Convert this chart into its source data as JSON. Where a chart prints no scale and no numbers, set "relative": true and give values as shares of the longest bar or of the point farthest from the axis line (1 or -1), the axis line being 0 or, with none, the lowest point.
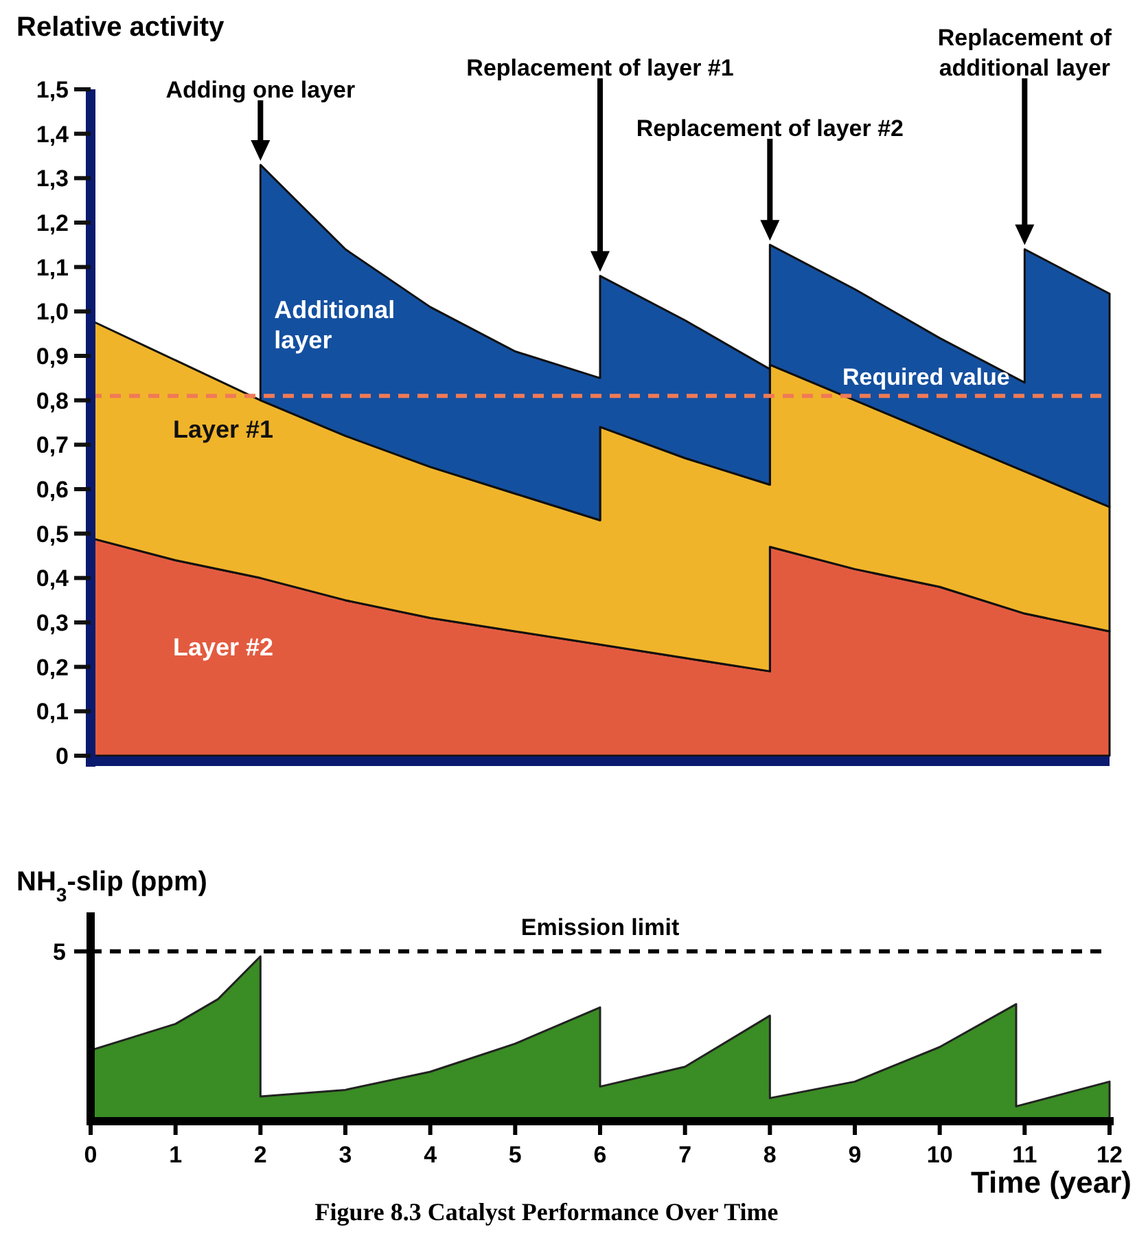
{
  "chart_data": [
    {
      "type": "area",
      "ylabel": "Relative activity",
      "stacked": true,
      "x": [
        0,
        1,
        2,
        2,
        3,
        4,
        5,
        6,
        6,
        7,
        8,
        8,
        9,
        10,
        11,
        11,
        12
      ],
      "xlim": [
        0,
        12
      ],
      "ylim": [
        0,
        1.5
      ],
      "yticks": [
        {
          "value": 0,
          "label": "0"
        },
        {
          "value": 0.1,
          "label": "0,1"
        },
        {
          "value": 0.2,
          "label": "0,2"
        },
        {
          "value": 0.3,
          "label": "0,3"
        },
        {
          "value": 0.4,
          "label": "0,4"
        },
        {
          "value": 0.5,
          "label": "0,5"
        },
        {
          "value": 0.6,
          "label": "0,6"
        },
        {
          "value": 0.7,
          "label": "0,7"
        },
        {
          "value": 0.8,
          "label": "0,8"
        },
        {
          "value": 0.9,
          "label": "0,9"
        },
        {
          "value": 1.0,
          "label": "1,0"
        },
        {
          "value": 1.1,
          "label": "1,1"
        },
        {
          "value": 1.2,
          "label": "1,2"
        },
        {
          "value": 1.3,
          "label": "1,3"
        },
        {
          "value": 1.4,
          "label": "1,4"
        },
        {
          "value": 1.5,
          "label": "1,5"
        }
      ],
      "tick_labels": "y",
      "series": [
        {
          "name": "Layer #2",
          "color": "#e35b3f",
          "values": [
            0.49,
            0.44,
            0.4,
            0.4,
            0.35,
            0.31,
            0.28,
            0.25,
            0.25,
            0.22,
            0.19,
            0.47,
            0.42,
            0.38,
            0.32,
            0.32,
            0.28
          ]
        },
        {
          "name": "Layer #1",
          "color": "#f0b42a",
          "values": [
            0.49,
            0.45,
            0.4,
            0.4,
            0.37,
            0.34,
            0.31,
            0.28,
            0.49,
            0.45,
            0.42,
            0.41,
            0.38,
            0.34,
            0.32,
            0.32,
            0.28
          ]
        },
        {
          "name": "Additional layer",
          "color": "#1450a0",
          "values": [
            null,
            null,
            0,
            0.53,
            0.42,
            0.36,
            0.32,
            0.32,
            0.34,
            0.31,
            0.26,
            0.27,
            0.25,
            0.22,
            0.2,
            0.5,
            0.48
          ]
        }
      ],
      "ref_lines": [
        {
          "axis": "y",
          "value": 0.81,
          "label": "Required value",
          "color": "#f07a55",
          "line_style": "dashed"
        }
      ],
      "annotations": [
        "Adding one layer",
        "Replacement of layer #1",
        "Replacement of layer #2",
        "Replacement of additional layer"
      ]
    },
    {
      "type": "area",
      "ylabel": "NH$_{3}$-slip (ppm)",
      "xlabel": "Time (year)",
      "relative": true,
      "x": [
        0,
        0.5,
        1,
        1.5,
        2,
        2,
        3,
        4,
        5,
        6,
        6,
        7,
        8,
        8,
        9,
        10,
        10.9,
        10.9,
        12
      ],
      "xlim": [
        0,
        12
      ],
      "xticks": [
        0,
        1,
        2,
        3,
        4,
        5,
        6,
        7,
        8,
        9,
        10,
        11,
        12
      ],
      "series": [
        {
          "color": "#3a8c24",
          "values": [
            0.43,
            0.51,
            0.59,
            0.74,
            1,
            0.15,
            0.19,
            0.3,
            0.47,
            0.69,
            0.21,
            0.33,
            0.64,
            0.14,
            0.24,
            0.45,
            0.71,
            0.09,
            0.24
          ]
        }
      ],
      "ref_lines": [
        {
          "axis": "y",
          "value": 1.03,
          "label": "Emission limit",
          "color": "#000000",
          "line_style": "dashed"
        }
      ],
      "annotations": [
        "5",
        "Figure 8.3 Catalyst Performance Over Time"
      ]
    }
  ]
}
